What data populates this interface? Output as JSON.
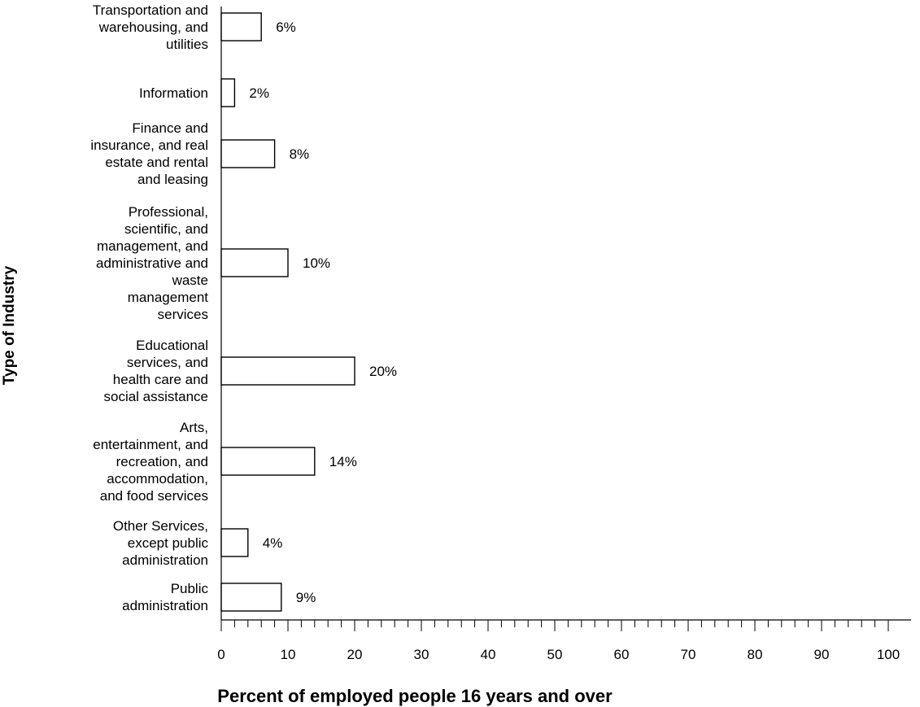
{
  "chart_data": {
    "type": "bar",
    "orientation": "horizontal",
    "title": "",
    "xlabel": "Percent of employed people 16 years and over",
    "ylabel": "Type of Industry",
    "xlim": [
      0,
      100
    ],
    "x_ticks": [
      "0",
      "10",
      "20",
      "30",
      "40",
      "50",
      "60",
      "70",
      "80",
      "90",
      "100"
    ],
    "grid": false,
    "categories": [
      "Transportation and\nwarehousing, and\nutilities",
      "Information",
      "Finance and\ninsurance, and real\nestate and rental\nand leasing",
      "Professional,\nscientific, and\nmanagement, and\nadministrative and\nwaste\nmanagement\nservices",
      "Educational\nservices, and\nhealth care and\nsocial assistance",
      "Arts,\nentertainment, and\nrecreation, and\naccommodation,\nand food services",
      "Other Services,\nexcept public\nadministration",
      "Public\nadministration"
    ],
    "values": [
      6,
      2,
      8,
      10,
      20,
      14,
      4,
      9
    ],
    "data_labels": [
      "6%",
      "2%",
      "8%",
      "10%",
      "20%",
      "14%",
      "4%",
      "9%"
    ],
    "bar_fill": "#ffffff",
    "bar_stroke": "#000000"
  }
}
